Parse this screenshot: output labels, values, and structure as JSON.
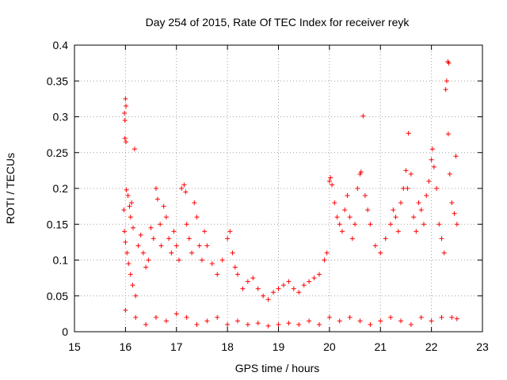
{
  "chart_data": {
    "type": "scatter",
    "title": "Day 254 of 2015, Rate Of TEC Index for receiver reyk",
    "xlabel": "GPS time / hours",
    "ylabel": "ROTI / TECUs",
    "xlim": [
      15,
      23
    ],
    "ylim": [
      0,
      0.4
    ],
    "x_ticks": [
      15,
      16,
      17,
      18,
      19,
      20,
      21,
      22,
      23
    ],
    "x_tick_labels": [
      "15",
      "16",
      "17",
      "18",
      "19",
      "20",
      "21",
      "22",
      "23"
    ],
    "y_ticks": [
      0,
      0.05,
      0.1,
      0.15,
      0.2,
      0.25,
      0.3,
      0.35,
      0.4
    ],
    "y_tick_labels": [
      "0",
      "0.05",
      "0.1",
      "0.15",
      "0.2",
      "0.25",
      "0.3",
      "0.35",
      "0.4"
    ],
    "grid": true,
    "marker": "+",
    "series": [
      {
        "name": "ROTI",
        "color": "#ff0000",
        "points": [
          [
            15.98,
            0.305
          ],
          [
            15.99,
            0.295
          ],
          [
            16.0,
            0.325
          ],
          [
            16.01,
            0.315
          ],
          [
            15.99,
            0.27
          ],
          [
            16.01,
            0.265
          ],
          [
            16.18,
            0.255
          ],
          [
            15.97,
            0.17
          ],
          [
            16.02,
            0.198
          ],
          [
            16.05,
            0.19
          ],
          [
            16.1,
            0.16
          ],
          [
            16.15,
            0.145
          ],
          [
            16.12,
            0.18
          ],
          [
            16.08,
            0.175
          ],
          [
            15.98,
            0.14
          ],
          [
            16.0,
            0.125
          ],
          [
            16.03,
            0.11
          ],
          [
            16.06,
            0.095
          ],
          [
            16.1,
            0.08
          ],
          [
            16.14,
            0.065
          ],
          [
            16.2,
            0.05
          ],
          [
            16.25,
            0.12
          ],
          [
            16.3,
            0.135
          ],
          [
            16.35,
            0.11
          ],
          [
            16.4,
            0.09
          ],
          [
            16.45,
            0.1
          ],
          [
            16.5,
            0.145
          ],
          [
            16.55,
            0.13
          ],
          [
            16.6,
            0.2
          ],
          [
            16.63,
            0.185
          ],
          [
            16.68,
            0.15
          ],
          [
            16.7,
            0.12
          ],
          [
            16.75,
            0.175
          ],
          [
            16.8,
            0.16
          ],
          [
            16.85,
            0.13
          ],
          [
            16.9,
            0.11
          ],
          [
            16.95,
            0.14
          ],
          [
            17.0,
            0.12
          ],
          [
            17.05,
            0.1
          ],
          [
            17.1,
            0.2
          ],
          [
            17.15,
            0.205
          ],
          [
            17.18,
            0.195
          ],
          [
            17.2,
            0.15
          ],
          [
            17.25,
            0.13
          ],
          [
            17.3,
            0.11
          ],
          [
            17.35,
            0.18
          ],
          [
            17.4,
            0.16
          ],
          [
            17.45,
            0.12
          ],
          [
            17.5,
            0.1
          ],
          [
            17.55,
            0.14
          ],
          [
            17.6,
            0.12
          ],
          [
            17.7,
            0.095
          ],
          [
            17.8,
            0.08
          ],
          [
            17.9,
            0.1
          ],
          [
            18.0,
            0.13
          ],
          [
            18.05,
            0.14
          ],
          [
            18.1,
            0.11
          ],
          [
            18.15,
            0.09
          ],
          [
            18.2,
            0.08
          ],
          [
            18.3,
            0.06
          ],
          [
            18.4,
            0.07
          ],
          [
            18.5,
            0.075
          ],
          [
            18.6,
            0.06
          ],
          [
            18.7,
            0.05
          ],
          [
            18.8,
            0.045
          ],
          [
            18.9,
            0.055
          ],
          [
            19.0,
            0.06
          ],
          [
            19.1,
            0.065
          ],
          [
            19.2,
            0.07
          ],
          [
            19.3,
            0.06
          ],
          [
            19.4,
            0.055
          ],
          [
            19.5,
            0.065
          ],
          [
            19.6,
            0.07
          ],
          [
            19.7,
            0.075
          ],
          [
            19.8,
            0.08
          ],
          [
            19.9,
            0.1
          ],
          [
            19.95,
            0.11
          ],
          [
            20.0,
            0.21
          ],
          [
            20.02,
            0.215
          ],
          [
            20.05,
            0.205
          ],
          [
            20.1,
            0.18
          ],
          [
            20.15,
            0.16
          ],
          [
            20.2,
            0.15
          ],
          [
            20.25,
            0.14
          ],
          [
            20.3,
            0.17
          ],
          [
            20.35,
            0.19
          ],
          [
            20.4,
            0.16
          ],
          [
            20.45,
            0.13
          ],
          [
            20.5,
            0.15
          ],
          [
            20.55,
            0.2
          ],
          [
            20.6,
            0.22
          ],
          [
            20.62,
            0.223
          ],
          [
            20.66,
            0.301
          ],
          [
            20.7,
            0.19
          ],
          [
            20.75,
            0.17
          ],
          [
            20.8,
            0.15
          ],
          [
            20.9,
            0.12
          ],
          [
            21.0,
            0.11
          ],
          [
            21.1,
            0.13
          ],
          [
            21.2,
            0.15
          ],
          [
            21.25,
            0.17
          ],
          [
            21.3,
            0.16
          ],
          [
            21.35,
            0.14
          ],
          [
            21.4,
            0.18
          ],
          [
            21.45,
            0.2
          ],
          [
            21.5,
            0.225
          ],
          [
            21.53,
            0.2
          ],
          [
            21.55,
            0.277
          ],
          [
            21.6,
            0.22
          ],
          [
            21.65,
            0.16
          ],
          [
            21.7,
            0.14
          ],
          [
            21.75,
            0.18
          ],
          [
            21.8,
            0.17
          ],
          [
            21.85,
            0.15
          ],
          [
            21.9,
            0.19
          ],
          [
            21.95,
            0.21
          ],
          [
            22.0,
            0.24
          ],
          [
            22.02,
            0.255
          ],
          [
            22.05,
            0.23
          ],
          [
            22.1,
            0.2
          ],
          [
            22.15,
            0.15
          ],
          [
            22.2,
            0.13
          ],
          [
            22.25,
            0.11
          ],
          [
            22.28,
            0.338
          ],
          [
            22.3,
            0.35
          ],
          [
            22.32,
            0.377
          ],
          [
            22.34,
            0.375
          ],
          [
            22.33,
            0.276
          ],
          [
            22.36,
            0.22
          ],
          [
            22.4,
            0.18
          ],
          [
            22.45,
            0.165
          ],
          [
            22.48,
            0.245
          ],
          [
            22.5,
            0.15
          ],
          [
            16.0,
            0.03
          ],
          [
            16.2,
            0.02
          ],
          [
            16.4,
            0.01
          ],
          [
            16.6,
            0.02
          ],
          [
            16.8,
            0.015
          ],
          [
            17.0,
            0.025
          ],
          [
            17.2,
            0.02
          ],
          [
            17.4,
            0.01
          ],
          [
            17.6,
            0.015
          ],
          [
            17.8,
            0.02
          ],
          [
            18.0,
            0.01
          ],
          [
            18.2,
            0.015
          ],
          [
            18.4,
            0.01
          ],
          [
            18.6,
            0.012
          ],
          [
            18.8,
            0.008
          ],
          [
            19.0,
            0.01
          ],
          [
            19.2,
            0.012
          ],
          [
            19.4,
            0.01
          ],
          [
            19.6,
            0.015
          ],
          [
            19.8,
            0.01
          ],
          [
            20.0,
            0.02
          ],
          [
            20.2,
            0.015
          ],
          [
            20.4,
            0.02
          ],
          [
            20.6,
            0.015
          ],
          [
            20.8,
            0.01
          ],
          [
            21.0,
            0.015
          ],
          [
            21.2,
            0.02
          ],
          [
            21.4,
            0.015
          ],
          [
            21.6,
            0.01
          ],
          [
            21.8,
            0.02
          ],
          [
            22.0,
            0.015
          ],
          [
            22.2,
            0.02
          ],
          [
            22.4,
            0.02
          ],
          [
            22.5,
            0.018
          ]
        ]
      }
    ]
  }
}
